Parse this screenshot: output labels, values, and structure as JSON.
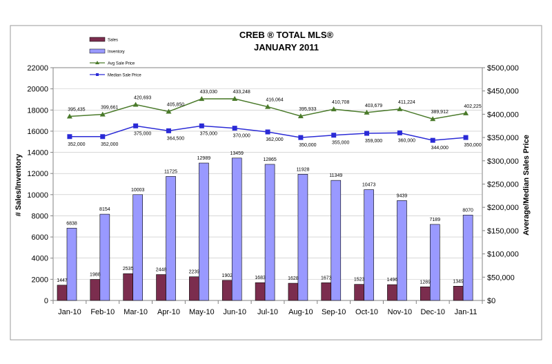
{
  "chart_data": {
    "type": "bar",
    "title": "CREB ® TOTAL MLS®",
    "subtitle": "JANUARY 2011",
    "xlabel": "",
    "ylabel": "# Sales/Inventory",
    "y2label": "Average/Median Sales Price",
    "ylim": [
      0,
      22000
    ],
    "y2lim": [
      0,
      500000
    ],
    "yticks": [
      "0",
      "2000",
      "4000",
      "6000",
      "8000",
      "10000",
      "12000",
      "14000",
      "16000",
      "18000",
      "20000",
      "22000"
    ],
    "y2ticks": [
      "$0",
      "$50,000",
      "$100,000",
      "$150,000",
      "$200,000",
      "$250,000",
      "$300,000",
      "$350,000",
      "$400,000",
      "$450,000",
      "$500,000"
    ],
    "categories": [
      "Jan-10",
      "Feb-10",
      "Mar-10",
      "Apr-10",
      "May-10",
      "Jun-10",
      "Jul-10",
      "Aug-10",
      "Sep-10",
      "Oct-10",
      "Nov-10",
      "Dec-10",
      "Jan-11"
    ],
    "series": [
      {
        "name": "Sales",
        "type": "bar",
        "axis": "left",
        "color": "#7b2d4e",
        "values": [
          1447,
          1988,
          2535,
          2448,
          2239,
          1902,
          1683,
          1628,
          1673,
          1523,
          1496,
          1289,
          1349
        ],
        "labels": [
          "1447",
          "1988",
          "2535",
          "2448",
          "2239",
          "1902",
          "1683",
          "1628",
          "1673",
          "1523",
          "1496",
          "1289",
          "1349"
        ]
      },
      {
        "name": "Inventory",
        "type": "bar",
        "axis": "left",
        "color": "#9999ff",
        "values": [
          6838,
          8154,
          10003,
          11725,
          12989,
          13459,
          12865,
          11928,
          11349,
          10473,
          9439,
          7189,
          8070
        ],
        "labels": [
          "6838",
          "8154",
          "10003",
          "11725",
          "12989",
          "13459",
          "12865",
          "11928",
          "11349",
          "10473",
          "9439",
          "7189",
          "8070"
        ]
      },
      {
        "name": "Avg Sale Price",
        "type": "line",
        "axis": "right",
        "color": "#4a7a2a",
        "marker": "triangle",
        "values": [
          395435,
          399661,
          420693,
          405850,
          433030,
          433248,
          416064,
          395933,
          410708,
          403679,
          411224,
          389912,
          402225
        ],
        "labels": [
          "395,435",
          "399,661",
          "420,693",
          "405,850",
          "433,030",
          "433,248",
          "416,064",
          "395,933",
          "410,708",
          "403,679",
          "411,224",
          "389,912",
          "402,225"
        ]
      },
      {
        "name": "Median Sale Price",
        "type": "line",
        "axis": "right",
        "color": "#2a2ad6",
        "marker": "square",
        "values": [
          352000,
          352000,
          375000,
          364500,
          375000,
          370000,
          362000,
          350000,
          355000,
          359000,
          360000,
          344000,
          350000
        ],
        "labels": [
          "352,000",
          "352,000",
          "375,000",
          "364,500",
          "375,000",
          "370,000",
          "362,000",
          "350,000",
          "355,000",
          "359,000",
          "360,000",
          "344,000",
          "350,000"
        ]
      }
    ],
    "legend_position": "top-left"
  }
}
